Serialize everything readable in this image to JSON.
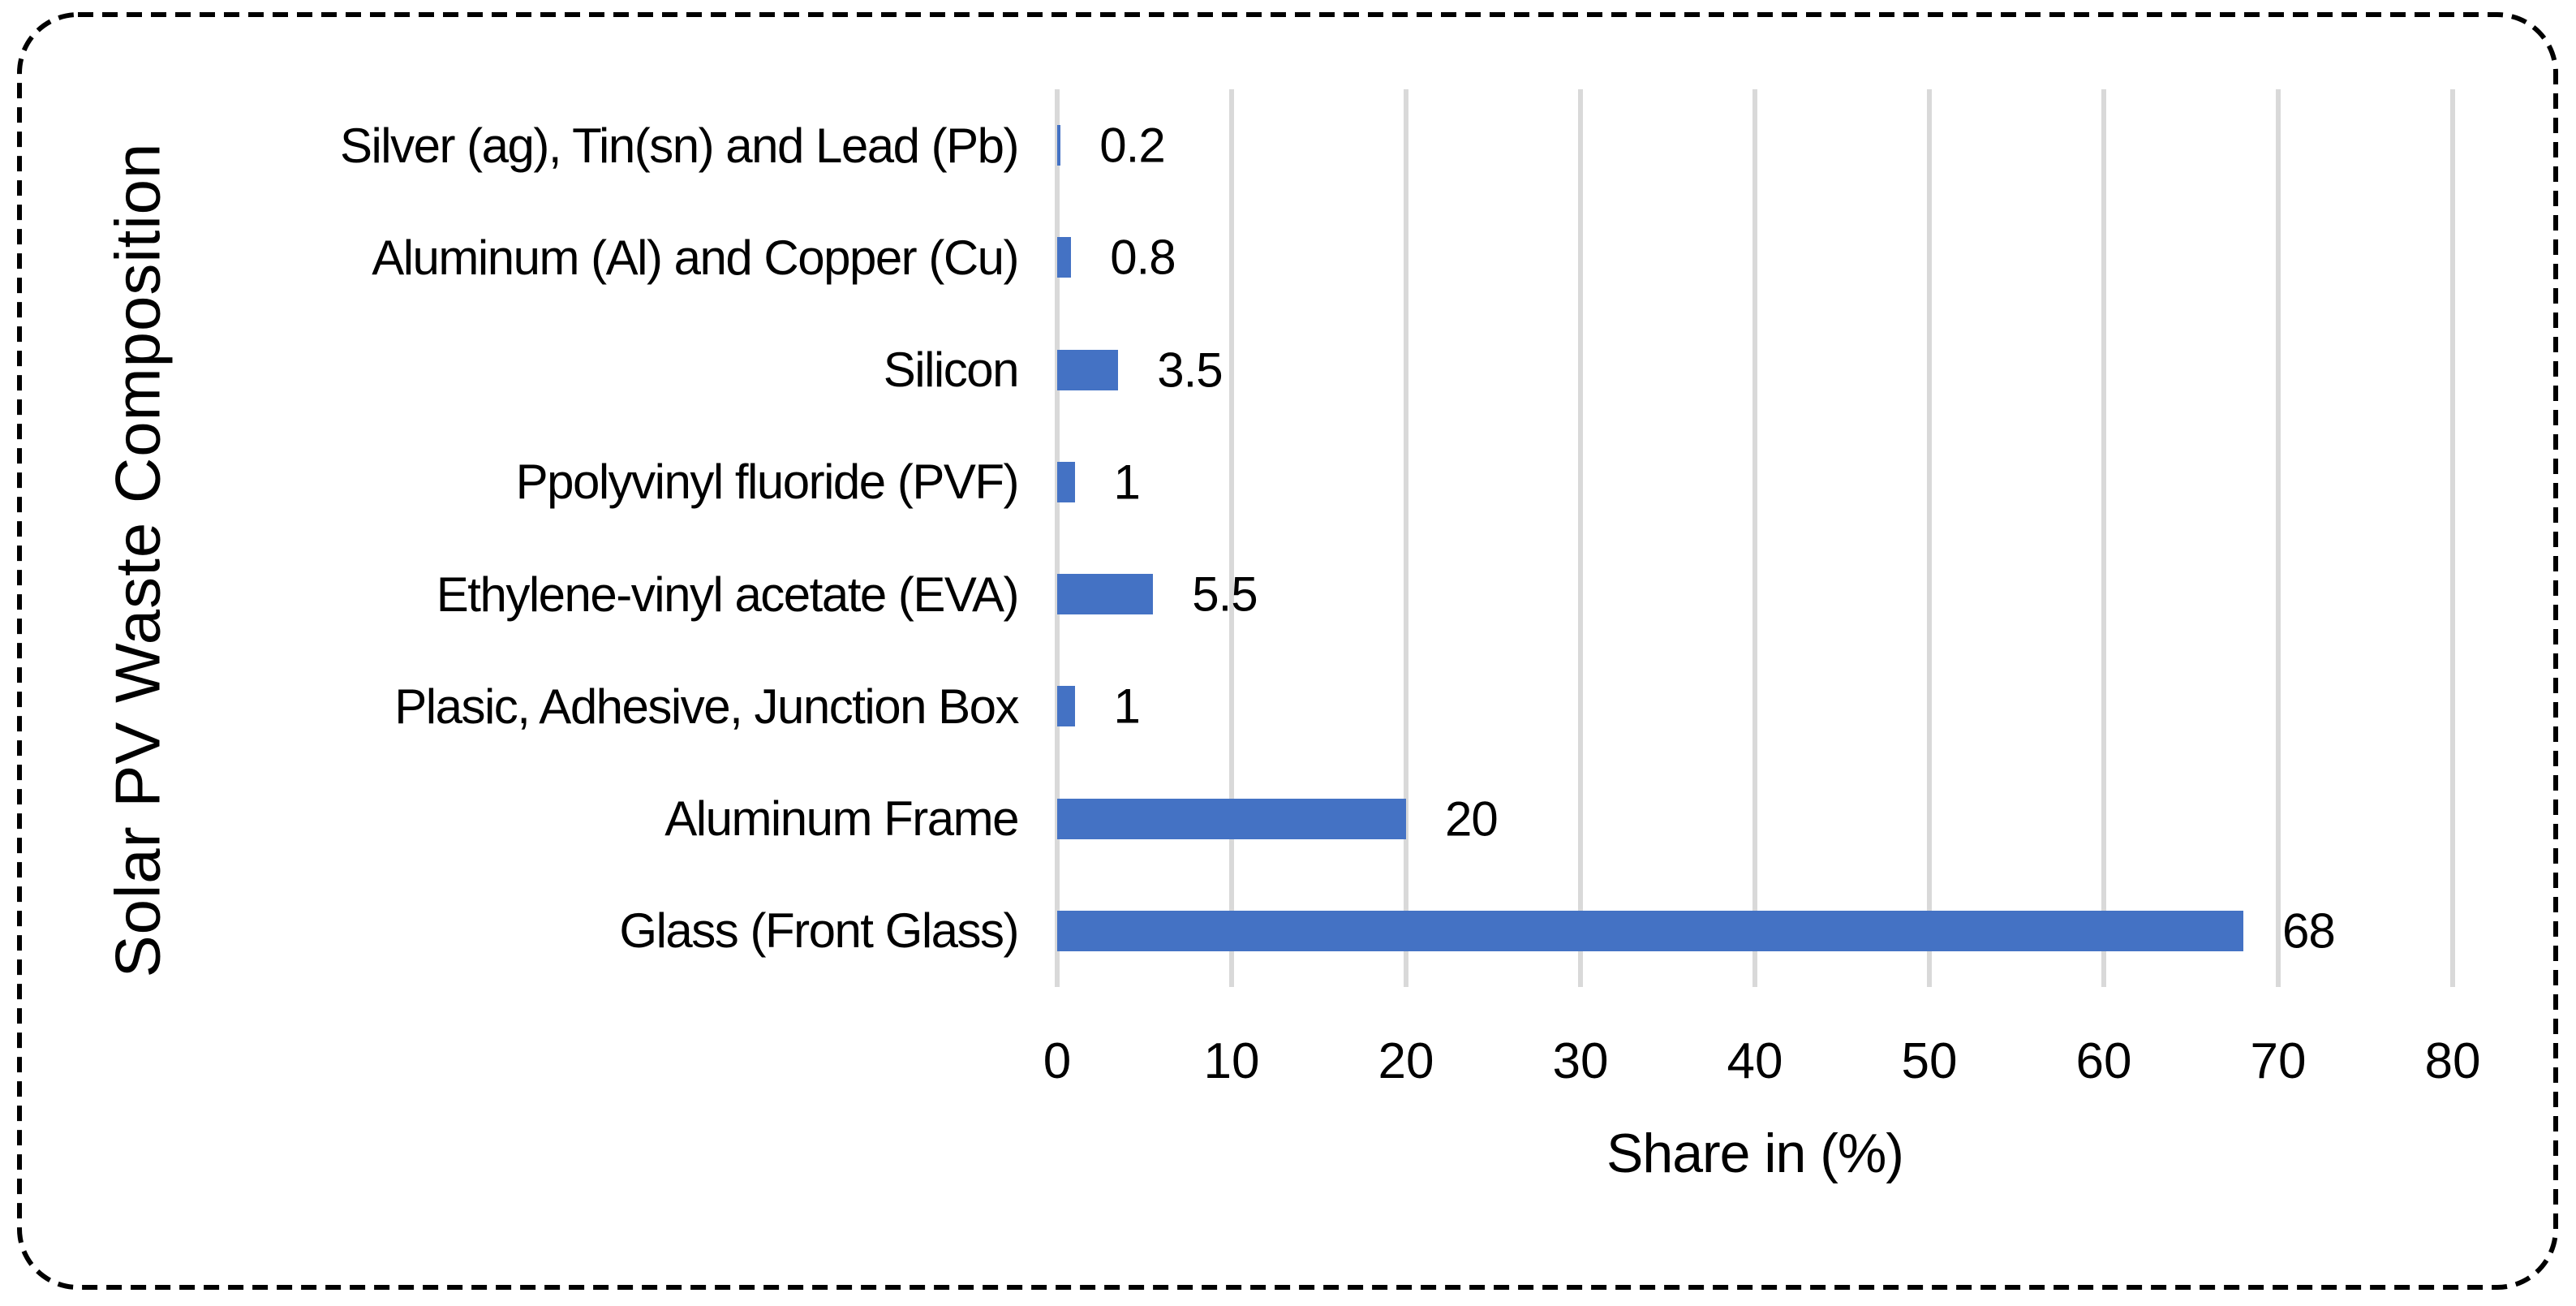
{
  "figure": {
    "background_color": "#ffffff",
    "border_color": "#000000",
    "border_style": "dashed-rounded"
  },
  "chart_data": {
    "type": "bar",
    "orientation": "horizontal",
    "xlabel": "Share in (%)",
    "ylabel": "Solar PV Waste Composition",
    "categories": [
      "Silver (ag), Tin(sn) and Lead (Pb)",
      "Aluminum (Al) and Copper (Cu)",
      "Silicon",
      "Ppolyvinyl fluoride (PVF)",
      "Ethylene-vinyl acetate (EVA)",
      "Plasic, Adhesive, Junction Box",
      "Aluminum Frame",
      "Glass (Front Glass)"
    ],
    "values": [
      0.2,
      0.8,
      3.5,
      1,
      5.5,
      1,
      20,
      68
    ],
    "value_labels": [
      "0.2",
      "0.8",
      "3.5",
      "1",
      "5.5",
      "1",
      "20",
      "68"
    ],
    "x_ticks": [
      "0",
      "10",
      "20",
      "30",
      "40",
      "50",
      "60",
      "70",
      "80"
    ],
    "xlim": [
      0,
      80
    ],
    "grid": true,
    "legend_position": "none",
    "bar_color": "#4472C4",
    "gridline_color": "#D9D9D9",
    "text_color": "#000000"
  }
}
